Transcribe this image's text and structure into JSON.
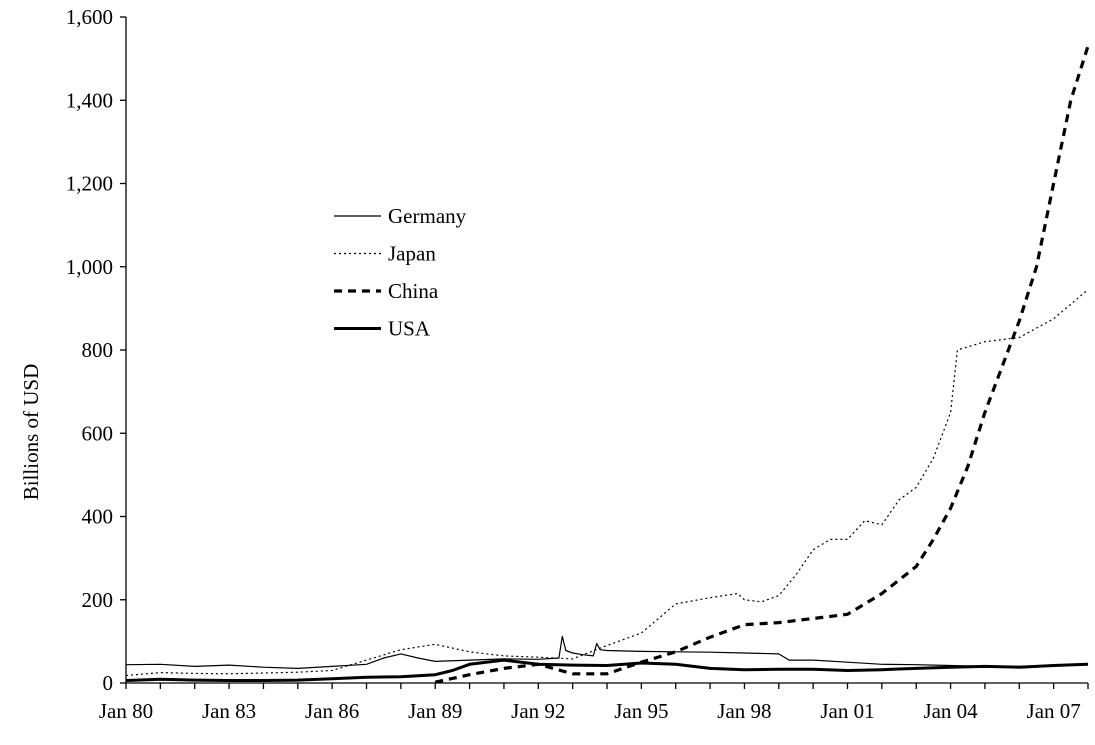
{
  "chart_data": {
    "type": "line",
    "title": "",
    "xlabel": "",
    "ylabel": "Billions of USD",
    "xlim": [
      1980.0,
      2008.0
    ],
    "ylim": [
      0,
      1600
    ],
    "y_ticks": [
      0,
      200,
      400,
      600,
      800,
      1000,
      1200,
      1400,
      1600
    ],
    "y_tick_labels": [
      "0",
      "200",
      "400",
      "600",
      "800",
      "1,000",
      "1,200",
      "1,400",
      "1,600"
    ],
    "x_ticks": [
      1980,
      1983,
      1986,
      1989,
      1992,
      1995,
      1998,
      2001,
      2004,
      2007
    ],
    "x_tick_labels": [
      "Jan 80",
      "Jan 83",
      "Jan 86",
      "Jan 89",
      "Jan 92",
      "Jan 95",
      "Jan 98",
      "Jan 01",
      "Jan 04",
      "Jan 07"
    ],
    "grid": false,
    "legend_position": "upper-left-center",
    "series": [
      {
        "name": "Germany",
        "style": "thin-solid",
        "x": [
          1980,
          1981,
          1982,
          1983,
          1984,
          1985,
          1986,
          1987,
          1987.5,
          1988,
          1988.5,
          1989,
          1990,
          1991,
          1992,
          1992.6,
          1992.7,
          1992.8,
          1993,
          1993.3,
          1993.6,
          1993.7,
          1993.8,
          1994,
          1995,
          1996,
          1997,
          1998,
          1999,
          1999.3,
          2000,
          2001,
          2002,
          2003,
          2004,
          2005,
          2006,
          2007,
          2008
        ],
        "values": [
          44,
          45,
          40,
          43,
          38,
          35,
          40,
          45,
          60,
          70,
          60,
          52,
          55,
          58,
          57,
          60,
          112,
          78,
          72,
          68,
          65,
          95,
          80,
          78,
          76,
          75,
          74,
          72,
          70,
          55,
          55,
          50,
          45,
          44,
          42,
          40,
          40,
          42,
          45
        ]
      },
      {
        "name": "Japan",
        "style": "dotted",
        "x": [
          1980,
          1981,
          1982,
          1983,
          1984,
          1985,
          1986,
          1987,
          1988,
          1989,
          1990,
          1991,
          1992,
          1993,
          1994,
          1995,
          1996,
          1997,
          1997.8,
          1998,
          1998.5,
          1999,
          1999.5,
          2000,
          2000.5,
          2001,
          2001.5,
          2002,
          2002.5,
          2003,
          2003.5,
          2004,
          2004.2,
          2005,
          2006,
          2007,
          2008
        ],
        "values": [
          18,
          25,
          23,
          22,
          24,
          26,
          30,
          55,
          80,
          93,
          75,
          65,
          62,
          58,
          90,
          120,
          190,
          205,
          215,
          200,
          195,
          210,
          260,
          320,
          345,
          345,
          390,
          380,
          440,
          470,
          540,
          650,
          800,
          820,
          830,
          875,
          945
        ]
      },
      {
        "name": "China",
        "style": "thick-dashed",
        "x": [
          1989,
          1990,
          1991,
          1992,
          1993,
          1994,
          1995,
          1996,
          1997,
          1998,
          1999,
          2000,
          2001,
          2002,
          2003,
          2003.5,
          2004,
          2004.5,
          2005,
          2005.5,
          2006,
          2006.5,
          2007,
          2007.5,
          2008
        ],
        "values": [
          2,
          20,
          35,
          45,
          22,
          22,
          50,
          75,
          110,
          140,
          145,
          155,
          165,
          215,
          280,
          345,
          420,
          520,
          650,
          760,
          870,
          1000,
          1200,
          1400,
          1530
        ]
      },
      {
        "name": "USA",
        "style": "thick-solid",
        "x": [
          1980,
          1981,
          1982,
          1983,
          1984,
          1985,
          1986,
          1987,
          1988,
          1989,
          1989.5,
          1990,
          1991,
          1992,
          1993,
          1994,
          1995,
          1996,
          1997,
          1998,
          1999,
          2000,
          2001,
          2002,
          2003,
          2004,
          2005,
          2006,
          2007,
          2008
        ],
        "values": [
          6,
          9,
          7,
          6,
          6,
          7,
          10,
          14,
          15,
          20,
          30,
          45,
          55,
          45,
          43,
          42,
          48,
          45,
          35,
          32,
          33,
          33,
          30,
          32,
          35,
          38,
          40,
          38,
          42,
          45
        ]
      }
    ]
  }
}
